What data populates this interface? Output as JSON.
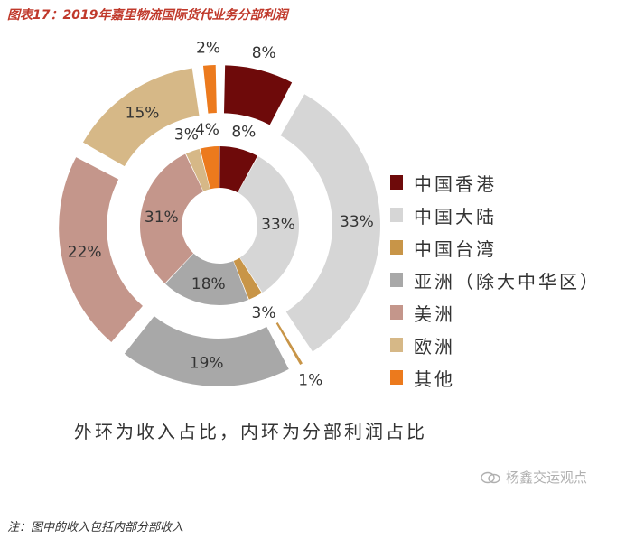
{
  "title": "图表17：2019年嘉里物流国际货代业务分部利润",
  "chart_data": [
    {
      "type": "pie",
      "ring": "outer",
      "caption_role": "收入占比",
      "categories": [
        "中国香港",
        "中国大陆",
        "中国台湾",
        "亚洲（除大中华区）",
        "美洲",
        "欧洲",
        "其他"
      ],
      "values": [
        8,
        33,
        1,
        19,
        22,
        15,
        2
      ],
      "labels": [
        "8%",
        "33%",
        "1%",
        "19%",
        "22%",
        "15%",
        "2%"
      ],
      "colors": [
        "#6e0a0a",
        "#d6d6d6",
        "#c89548",
        "#a8a8a8",
        "#c4968b",
        "#d6b887",
        "#ec7a1d"
      ]
    },
    {
      "type": "pie",
      "ring": "inner",
      "caption_role": "分部利润占比",
      "categories": [
        "中国香港",
        "中国大陆",
        "中国台湾",
        "亚洲（除大中华区）",
        "美洲",
        "欧洲",
        "其他"
      ],
      "values": [
        8,
        33,
        3,
        18,
        31,
        3,
        4
      ],
      "labels": [
        "8%",
        "33%",
        "3%",
        "18%",
        "31%",
        "3%",
        "4%"
      ],
      "colors": [
        "#6e0a0a",
        "#d6d6d6",
        "#c89548",
        "#a8a8a8",
        "#c4968b",
        "#d6b887",
        "#ec7a1d"
      ]
    }
  ],
  "legend": [
    {
      "label": "中国香港",
      "color": "#6e0a0a"
    },
    {
      "label": "中国大陆",
      "color": "#d6d6d6"
    },
    {
      "label": "中国台湾",
      "color": "#c89548"
    },
    {
      "label": "亚洲（除大中华区）",
      "color": "#a8a8a8"
    },
    {
      "label": "美洲",
      "color": "#c4968b"
    },
    {
      "label": "欧洲",
      "color": "#d6b887"
    },
    {
      "label": "其他",
      "color": "#ec7a1d"
    }
  ],
  "caption": "外环为收入占比，内环为分部利润占比",
  "watermark": "杨鑫交运观点",
  "footnote": "注：图中的收入包括内部分部收入"
}
